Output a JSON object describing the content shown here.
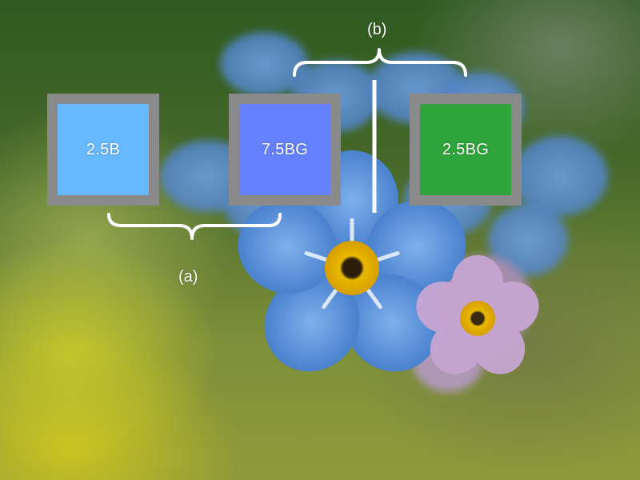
{
  "swatches": [
    {
      "label": "2.5B",
      "color": "#66b8ff"
    },
    {
      "label": "7.5BG",
      "color": "#6681ff"
    },
    {
      "label": "2.5BG",
      "color": "#2ea43a"
    }
  ],
  "annotations": {
    "a": "(a)",
    "b": "(b)"
  },
  "colors": {
    "frame": "#8a8a8a",
    "annotation": "#ffffff",
    "petal": "#5b92dd",
    "flower_center": "#e0b200"
  }
}
